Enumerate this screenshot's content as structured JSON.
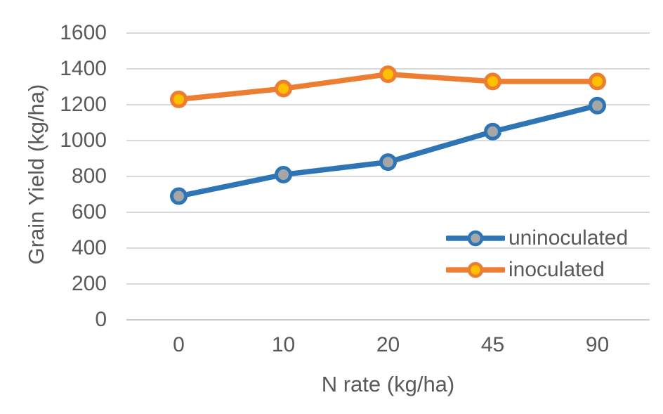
{
  "chart_data": {
    "type": "line",
    "title": "",
    "xlabel": "N rate (kg/ha)",
    "ylabel": "Grain Yield (kg/ha)",
    "categories": [
      "0",
      "10",
      "20",
      "45",
      "90"
    ],
    "y_ticks": [
      0,
      200,
      400,
      600,
      800,
      1000,
      1200,
      1400,
      1600
    ],
    "ylim": [
      0,
      1600
    ],
    "grid": "horizontal",
    "legend_position": "inside-bottom-right",
    "series": [
      {
        "name": "uninoculated",
        "values": [
          690,
          810,
          880,
          1050,
          1195
        ],
        "line_color": "#2E75B6",
        "marker_fill": "#A6A6A6",
        "marker_stroke": "#2E75B6"
      },
      {
        "name": "inoculated",
        "values": [
          1230,
          1290,
          1370,
          1330,
          1330
        ],
        "line_color": "#ED7D31",
        "marker_fill": "#FFC000",
        "marker_stroke": "#ED7D31"
      }
    ],
    "colors": {
      "gridline": "#D9D9D9",
      "axis_line": "#C9C9C9",
      "text": "#595959",
      "background": "#FFFFFF"
    }
  }
}
